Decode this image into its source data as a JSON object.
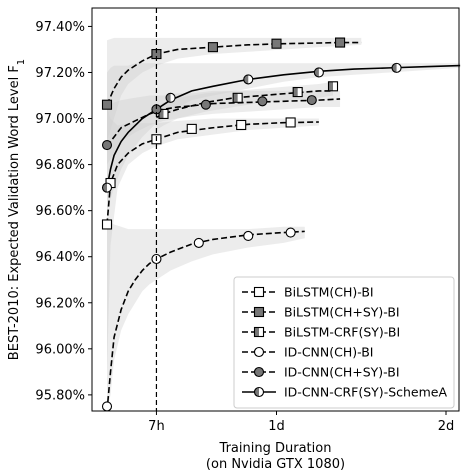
{
  "chart_data": {
    "type": "line",
    "title": "",
    "xlabel_lines": [
      "Training Duration",
      "(on Nvidia GTX 1080)"
    ],
    "ylabel": "BEST-2010: Expected Validation Word Level F",
    "ylabel_subscript": "1",
    "x_unit": "hours",
    "xlim": [
      0,
      50
    ],
    "ylim": [
      95.73,
      97.48
    ],
    "x_ticks": [
      {
        "value": 7,
        "label": "7h"
      },
      {
        "value": 24,
        "label": "1d"
      },
      {
        "value": 48,
        "label": "2d"
      }
    ],
    "y_ticks": [
      {
        "value": 95.8,
        "label": "95.80%"
      },
      {
        "value": 96.0,
        "label": "96.00%"
      },
      {
        "value": 96.2,
        "label": "96.20%"
      },
      {
        "value": 96.4,
        "label": "96.40%"
      },
      {
        "value": 96.6,
        "label": "96.60%"
      },
      {
        "value": 96.8,
        "label": "96.80%"
      },
      {
        "value": 97.0,
        "label": "97.00%"
      },
      {
        "value": 97.2,
        "label": "97.20%"
      },
      {
        "value": 97.4,
        "label": "97.40%"
      }
    ],
    "vline": {
      "x": 7,
      "style": "dashed"
    },
    "grid": false,
    "legend_position": "bottom-right",
    "series": [
      {
        "name": "BiLSTM(CH)-BI",
        "line": "dashed",
        "marker": "square",
        "fill": "#ffffff",
        "x": [
          0,
          0.5,
          1.5,
          3,
          5,
          7,
          10,
          15,
          20,
          25,
          30
        ],
        "y": [
          96.54,
          96.72,
          96.8,
          96.85,
          96.89,
          96.91,
          96.94,
          96.96,
          96.975,
          96.982,
          96.985
        ],
        "markers_x": [
          0,
          0.5,
          7,
          12,
          19,
          26
        ],
        "markers_y": [
          96.54,
          96.72,
          96.91,
          96.955,
          96.972,
          96.983
        ],
        "band_low": [
          95.9,
          96.45,
          96.7,
          96.8,
          96.85,
          96.88,
          96.91,
          96.93,
          96.95,
          96.96,
          96.97
        ],
        "band_high": [
          97.05,
          97.0,
          96.97,
          96.98,
          96.98,
          96.98,
          96.99,
          97.0,
          97.0,
          97.0,
          97.0
        ]
      },
      {
        "name": "BiLSTM(CH+SY)-BI",
        "line": "dashed",
        "marker": "square",
        "fill": "#777777",
        "x": [
          0,
          1,
          2,
          3,
          5,
          7,
          10,
          15,
          20,
          25,
          30,
          33,
          36
        ],
        "y": [
          97.06,
          97.13,
          97.18,
          97.21,
          97.25,
          97.28,
          97.3,
          97.31,
          97.32,
          97.325,
          97.328,
          97.33,
          97.33
        ],
        "markers_x": [
          0,
          7,
          15,
          24,
          33
        ],
        "markers_y": [
          97.06,
          97.28,
          97.31,
          97.325,
          97.33
        ],
        "band_low": [
          96.9,
          97.0,
          97.1,
          97.15,
          97.2,
          97.23,
          97.26,
          97.28,
          97.29,
          97.3,
          97.31,
          97.315,
          97.32
        ],
        "band_high": [
          97.34,
          97.35,
          97.35,
          97.35,
          97.35,
          97.35,
          97.35,
          97.35,
          97.35,
          97.35,
          97.35,
          97.35,
          97.35
        ]
      },
      {
        "name": "BiLSTM-CRF(SY)-BI",
        "line": "dashed",
        "marker": "half-square",
        "fill": "#777777",
        "x": [
          7,
          8,
          10,
          14,
          18,
          22,
          26,
          30,
          32
        ],
        "y": [
          97.005,
          97.02,
          97.04,
          97.07,
          97.09,
          97.1,
          97.11,
          97.12,
          97.12
        ],
        "markers_x": [
          8,
          18.5,
          27,
          32
        ],
        "markers_y": [
          97.02,
          97.09,
          97.115,
          97.14
        ],
        "band_low": [
          96.95,
          96.97,
          97.0,
          97.03,
          97.05,
          97.07,
          97.08,
          97.09,
          97.1
        ],
        "band_high": [
          97.05,
          97.07,
          97.09,
          97.11,
          97.12,
          97.13,
          97.14,
          97.15,
          97.16
        ]
      },
      {
        "name": "ID-CNN(CH)-BI",
        "line": "dashed",
        "marker": "circle",
        "fill": "#ffffff",
        "x": [
          0,
          0.5,
          1,
          2,
          3,
          4,
          5,
          6,
          7,
          9,
          12,
          15,
          20,
          25,
          28
        ],
        "y": [
          95.73,
          95.9,
          96.05,
          96.17,
          96.25,
          96.3,
          96.34,
          96.37,
          96.39,
          96.42,
          96.455,
          96.475,
          96.495,
          96.505,
          96.51
        ],
        "markers_x": [
          0,
          7,
          13,
          20,
          26
        ],
        "markers_y": [
          95.75,
          96.39,
          96.46,
          96.49,
          96.505
        ],
        "band_low": [
          95.73,
          95.8,
          95.95,
          96.08,
          96.15,
          96.2,
          96.25,
          96.28,
          96.3,
          96.34,
          96.38,
          96.41,
          96.44,
          96.46,
          96.48
        ],
        "band_high": [
          96.55,
          96.55,
          96.54,
          96.53,
          96.52,
          96.52,
          96.52,
          96.52,
          96.52,
          96.52,
          96.52,
          96.52,
          96.52,
          96.53,
          96.53
        ]
      },
      {
        "name": "ID-CNN(CH+SY)-BI",
        "line": "dashed",
        "marker": "circle",
        "fill": "#777777",
        "x": [
          0,
          1,
          2,
          4,
          6,
          8,
          10,
          12,
          15,
          20,
          25,
          30,
          33
        ],
        "y": [
          96.88,
          96.92,
          96.96,
          96.99,
          97.02,
          97.04,
          97.05,
          97.055,
          97.065,
          97.07,
          97.075,
          97.08,
          97.085
        ],
        "markers_x": [
          0,
          7,
          14,
          22,
          29
        ],
        "markers_y": [
          96.885,
          97.04,
          97.06,
          97.075,
          97.08
        ],
        "band_low": [
          96.8,
          96.85,
          96.9,
          96.94,
          96.97,
          96.99,
          97.0,
          97.01,
          97.02,
          97.03,
          97.04,
          97.05,
          97.05
        ],
        "band_high": [
          97.05,
          97.07,
          97.08,
          97.09,
          97.1,
          97.1,
          97.11,
          97.11,
          97.12,
          97.12,
          97.12,
          97.12,
          97.12
        ]
      },
      {
        "name": "ID-CNN-CRF(SY)-SchemeA",
        "line": "solid",
        "marker": "half-circle",
        "fill": "#777777",
        "x": [
          0,
          0.5,
          1,
          2,
          3,
          4,
          5,
          7,
          9,
          12,
          15,
          20,
          25,
          30,
          35,
          40,
          45,
          50
        ],
        "y": [
          96.7,
          96.78,
          96.84,
          96.9,
          96.94,
          96.97,
          97.0,
          97.04,
          97.08,
          97.12,
          97.14,
          97.17,
          97.19,
          97.205,
          97.215,
          97.22,
          97.225,
          97.23
        ],
        "markers_x": [
          0,
          9,
          20,
          30,
          41
        ],
        "markers_y": [
          96.7,
          97.09,
          97.17,
          97.2,
          97.22
        ],
        "band_low": [
          96.6,
          96.65,
          96.7,
          96.78,
          96.84,
          96.88,
          96.92,
          96.98,
          97.03,
          97.08,
          97.1,
          97.13,
          97.16,
          97.18,
          97.19,
          97.2,
          97.21,
          97.22
        ],
        "band_high": [
          97.2,
          97.22,
          97.23,
          97.23,
          97.23,
          97.24,
          97.24,
          97.24,
          97.24,
          97.24,
          97.24,
          97.24,
          97.24,
          97.24,
          97.24,
          97.24,
          97.24,
          97.24
        ]
      }
    ]
  }
}
